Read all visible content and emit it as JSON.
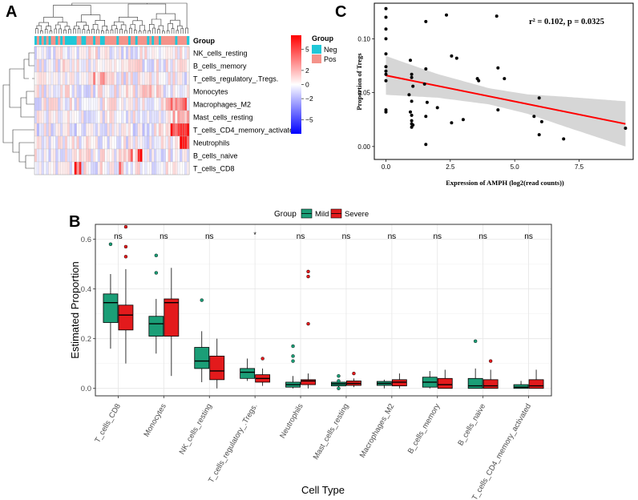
{
  "panels": {
    "a": "A",
    "b": "B",
    "c": "C"
  },
  "chart_data": [
    {
      "type": "heatmap",
      "panel": "A",
      "annotation_row_label": "Group",
      "rows": [
        "NK_cells_resting",
        "B_cells_memory",
        "T_cells_regulatory_.Tregs.",
        "Monocytes",
        "Macrophages_M2",
        "Mast_cells_resting",
        "T_cells_CD4_memory_activated",
        "Neutrophils",
        "B_cells_naive",
        "T_cells_CD8"
      ],
      "legend_title": "Group",
      "legend_entries": [
        {
          "name": "Neg",
          "color": "#1fc8d8"
        },
        {
          "name": "Pos",
          "color": "#f4938a"
        }
      ],
      "colorbar_ticks": [
        "5",
        "2",
        "0",
        "−2",
        "−5"
      ],
      "colorbar_values": [
        5,
        2,
        0,
        -2,
        -5
      ],
      "color_range": [
        -7,
        7
      ],
      "colors": {
        "high": "#ff0000",
        "mid": "#ffffff",
        "low": "#0000ff"
      }
    },
    {
      "type": "box",
      "panel": "B",
      "legend_title": "Group",
      "groups": [
        {
          "name": "Mild",
          "color": "#1b9e77"
        },
        {
          "name": "Severe",
          "color": "#e31a1c"
        }
      ],
      "categories": [
        "T_cells_CD8",
        "Monocytes",
        "NK_cells_resting",
        "T_cells_regulatory_.Tregs.",
        "Neutrophils",
        "Mast_cells_resting",
        "Macrophages_M2",
        "B_cells_memory",
        "B_cells_naive",
        "T_cells_CD4_memory_activated"
      ],
      "significance": [
        "ns",
        "ns",
        "ns",
        "*",
        "ns",
        "ns",
        "ns",
        "ns",
        "ns",
        "ns"
      ],
      "xlabel": "Cell Type",
      "ylabel": "Estimated Proportion",
      "yticks": [
        "0.0",
        "0.2",
        "0.4",
        "0.6"
      ],
      "ytick_values": [
        0,
        0.2,
        0.4,
        0.6
      ],
      "ylim": [
        -0.03,
        0.66
      ],
      "series": [
        {
          "name": "Mild",
          "boxes": [
            {
              "q1": 0.265,
              "med": 0.345,
              "q3": 0.38,
              "lo": 0.16,
              "hi": 0.46,
              "out": [
                0.58
              ]
            },
            {
              "q1": 0.21,
              "med": 0.26,
              "q3": 0.29,
              "lo": 0.14,
              "hi": 0.36,
              "out": [
                0.535,
                0.465
              ]
            },
            {
              "q1": 0.08,
              "med": 0.11,
              "q3": 0.165,
              "lo": 0.025,
              "hi": 0.23,
              "out": [
                0.355
              ]
            },
            {
              "q1": 0.04,
              "med": 0.065,
              "q3": 0.08,
              "lo": 0.03,
              "hi": 0.12,
              "out": []
            },
            {
              "q1": 0.005,
              "med": 0.015,
              "q3": 0.025,
              "lo": 0.0,
              "hi": 0.05,
              "out": [
                0.17,
                0.13,
                0.11
              ]
            },
            {
              "q1": 0.01,
              "med": 0.018,
              "q3": 0.025,
              "lo": 0.0,
              "hi": 0.035,
              "out": [
                0.05,
                0.03,
                0.0
              ]
            },
            {
              "q1": 0.012,
              "med": 0.02,
              "q3": 0.028,
              "lo": 0.0,
              "hi": 0.035,
              "out": []
            },
            {
              "q1": 0.005,
              "med": 0.025,
              "q3": 0.045,
              "lo": 0.0,
              "hi": 0.07,
              "out": []
            },
            {
              "q1": 0.0,
              "med": 0.01,
              "q3": 0.04,
              "lo": 0.0,
              "hi": 0.08,
              "out": [
                0.19
              ]
            },
            {
              "q1": 0.0,
              "med": 0.005,
              "q3": 0.015,
              "lo": 0.0,
              "hi": 0.03,
              "out": []
            }
          ]
        },
        {
          "name": "Severe",
          "boxes": [
            {
              "q1": 0.235,
              "med": 0.295,
              "q3": 0.335,
              "lo": 0.1,
              "hi": 0.48,
              "out": [
                0.65,
                0.57,
                0.53
              ]
            },
            {
              "q1": 0.21,
              "med": 0.345,
              "q3": 0.36,
              "lo": 0.05,
              "hi": 0.485,
              "out": []
            },
            {
              "q1": 0.035,
              "med": 0.07,
              "q3": 0.13,
              "lo": 0.0,
              "hi": 0.2,
              "out": []
            },
            {
              "q1": 0.025,
              "med": 0.04,
              "q3": 0.055,
              "lo": 0.01,
              "hi": 0.08,
              "out": [
                0.12
              ]
            },
            {
              "q1": 0.015,
              "med": 0.03,
              "q3": 0.035,
              "lo": 0.0,
              "hi": 0.06,
              "out": [
                0.47,
                0.45,
                0.26
              ]
            },
            {
              "q1": 0.012,
              "med": 0.02,
              "q3": 0.03,
              "lo": 0.005,
              "hi": 0.04,
              "out": [
                0.06
              ]
            },
            {
              "q1": 0.01,
              "med": 0.025,
              "q3": 0.035,
              "lo": 0.0,
              "hi": 0.06,
              "out": []
            },
            {
              "q1": 0.0,
              "med": 0.015,
              "q3": 0.04,
              "lo": 0.0,
              "hi": 0.075,
              "out": []
            },
            {
              "q1": 0.0,
              "med": 0.01,
              "q3": 0.035,
              "lo": 0.0,
              "hi": 0.075,
              "out": [
                0.11
              ]
            },
            {
              "q1": 0.0,
              "med": 0.01,
              "q3": 0.035,
              "lo": 0.0,
              "hi": 0.075,
              "out": []
            }
          ]
        }
      ]
    },
    {
      "type": "scatter",
      "panel": "C",
      "annotation": "r² = 0.102, p = 0.0325",
      "xlabel": "Expression of AMPH (log2(read counts))",
      "ylabel": "Proportion of Tregs",
      "xticks": [
        "0.0",
        "2.5",
        "5.0",
        "7.5"
      ],
      "xtick_values": [
        0,
        2.5,
        5,
        7.5
      ],
      "yticks": [
        "0.00",
        "0.05",
        "0.10"
      ],
      "ytick_values": [
        0,
        0.05,
        0.1
      ],
      "xlim": [
        -0.45,
        9.6
      ],
      "ylim": [
        -0.012,
        0.133
      ],
      "regression": {
        "x0": 0.0,
        "y0": 0.066,
        "x1": 9.3,
        "y1": 0.021
      },
      "band_halfwidth_at_x": [
        [
          0,
          0.018
        ],
        [
          2,
          0.011
        ],
        [
          4,
          0.0075
        ],
        [
          5.5,
          0.009
        ],
        [
          7,
          0.014
        ],
        [
          9.3,
          0.021
        ]
      ],
      "points": [
        [
          0.0,
          0.128
        ],
        [
          0.0,
          0.12
        ],
        [
          0.0,
          0.109
        ],
        [
          0.0,
          0.1
        ],
        [
          0.0,
          0.086
        ],
        [
          0.0,
          0.074
        ],
        [
          0.0,
          0.07
        ],
        [
          0.0,
          0.067
        ],
        [
          0.0,
          0.061
        ],
        [
          0.0,
          0.034
        ],
        [
          0.0,
          0.032
        ],
        [
          0.95,
          0.08
        ],
        [
          1.0,
          0.067
        ],
        [
          1.0,
          0.064
        ],
        [
          1.05,
          0.056
        ],
        [
          0.9,
          0.048
        ],
        [
          1.0,
          0.042
        ],
        [
          0.95,
          0.032
        ],
        [
          1.0,
          0.029
        ],
        [
          1.0,
          0.024
        ],
        [
          1.0,
          0.021
        ],
        [
          1.05,
          0.02
        ],
        [
          1.0,
          0.018
        ],
        [
          1.55,
          0.116
        ],
        [
          1.55,
          0.072
        ],
        [
          1.5,
          0.058
        ],
        [
          1.6,
          0.041
        ],
        [
          1.55,
          0.028
        ],
        [
          1.55,
          0.002
        ],
        [
          2.0,
          0.036
        ],
        [
          2.35,
          0.122
        ],
        [
          2.55,
          0.084
        ],
        [
          2.75,
          0.082
        ],
        [
          2.55,
          0.022
        ],
        [
          3.0,
          0.025
        ],
        [
          3.55,
          0.063
        ],
        [
          3.6,
          0.061
        ],
        [
          4.3,
          0.121
        ],
        [
          4.35,
          0.073
        ],
        [
          4.35,
          0.034
        ],
        [
          4.6,
          0.063
        ],
        [
          5.75,
          0.028
        ],
        [
          5.95,
          0.045
        ],
        [
          6.05,
          0.023
        ],
        [
          5.95,
          0.011
        ],
        [
          6.9,
          0.007
        ],
        [
          9.3,
          0.017
        ]
      ]
    }
  ]
}
